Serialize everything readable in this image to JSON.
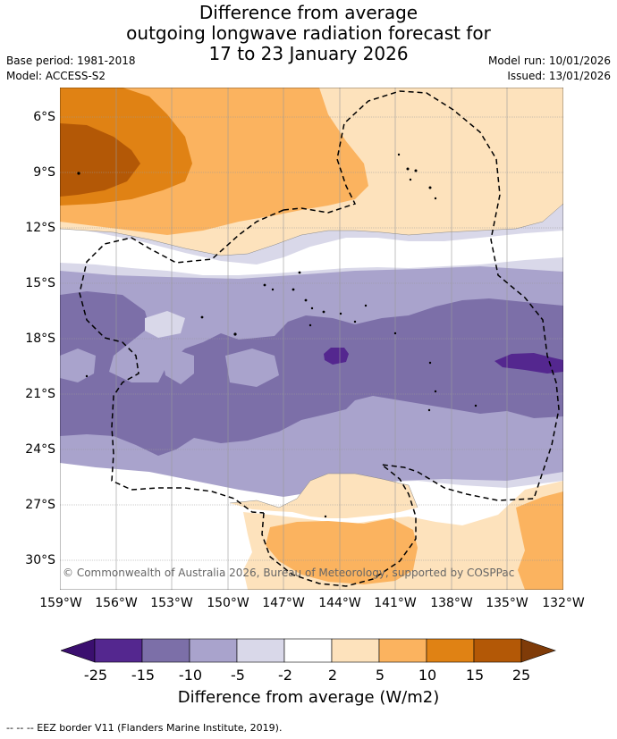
{
  "title": {
    "line1": "Difference from average",
    "line2": "outgoing longwave radiation forecast for",
    "line3": "17 to 23 January 2026"
  },
  "meta": {
    "base_period": "Base period: 1981-2018",
    "model": "Model: ACCESS-S2",
    "model_run": "Model run: 10/01/2026",
    "issued": "Issued: 13/01/2026"
  },
  "axes": {
    "lat_labels": [
      "6°S",
      "9°S",
      "12°S",
      "15°S",
      "18°S",
      "21°S",
      "24°S",
      "27°S",
      "30°S"
    ],
    "lon_labels": [
      "159°W",
      "156°W",
      "153°W",
      "150°W",
      "147°W",
      "144°W",
      "141°W",
      "138°W",
      "135°W",
      "132°W"
    ]
  },
  "colors": {
    "land": "#000000",
    "grid": "#999999",
    "eez": "#000000",
    "bins": [
      "#3b0f6f",
      "#54278f",
      "#7c6fa8",
      "#a9a3cc",
      "#d9d8e9",
      "#ffffff",
      "#fde2bc",
      "#fbb35f",
      "#e08214",
      "#b35806",
      "#7f3b08"
    ]
  },
  "legend": {
    "ticks": [
      "-25",
      "-15",
      "-10",
      "-5",
      "-2",
      "2",
      "5",
      "10",
      "15",
      "25"
    ],
    "title": "Difference from average (W/m2)"
  },
  "copyright": "© Commonwealth of Australia 2026, Bureau of Meteorology, supported by COSPPac",
  "footnote": "-- -- -- EEZ border V11 (Flanders Marine Institute, 2019)."
}
